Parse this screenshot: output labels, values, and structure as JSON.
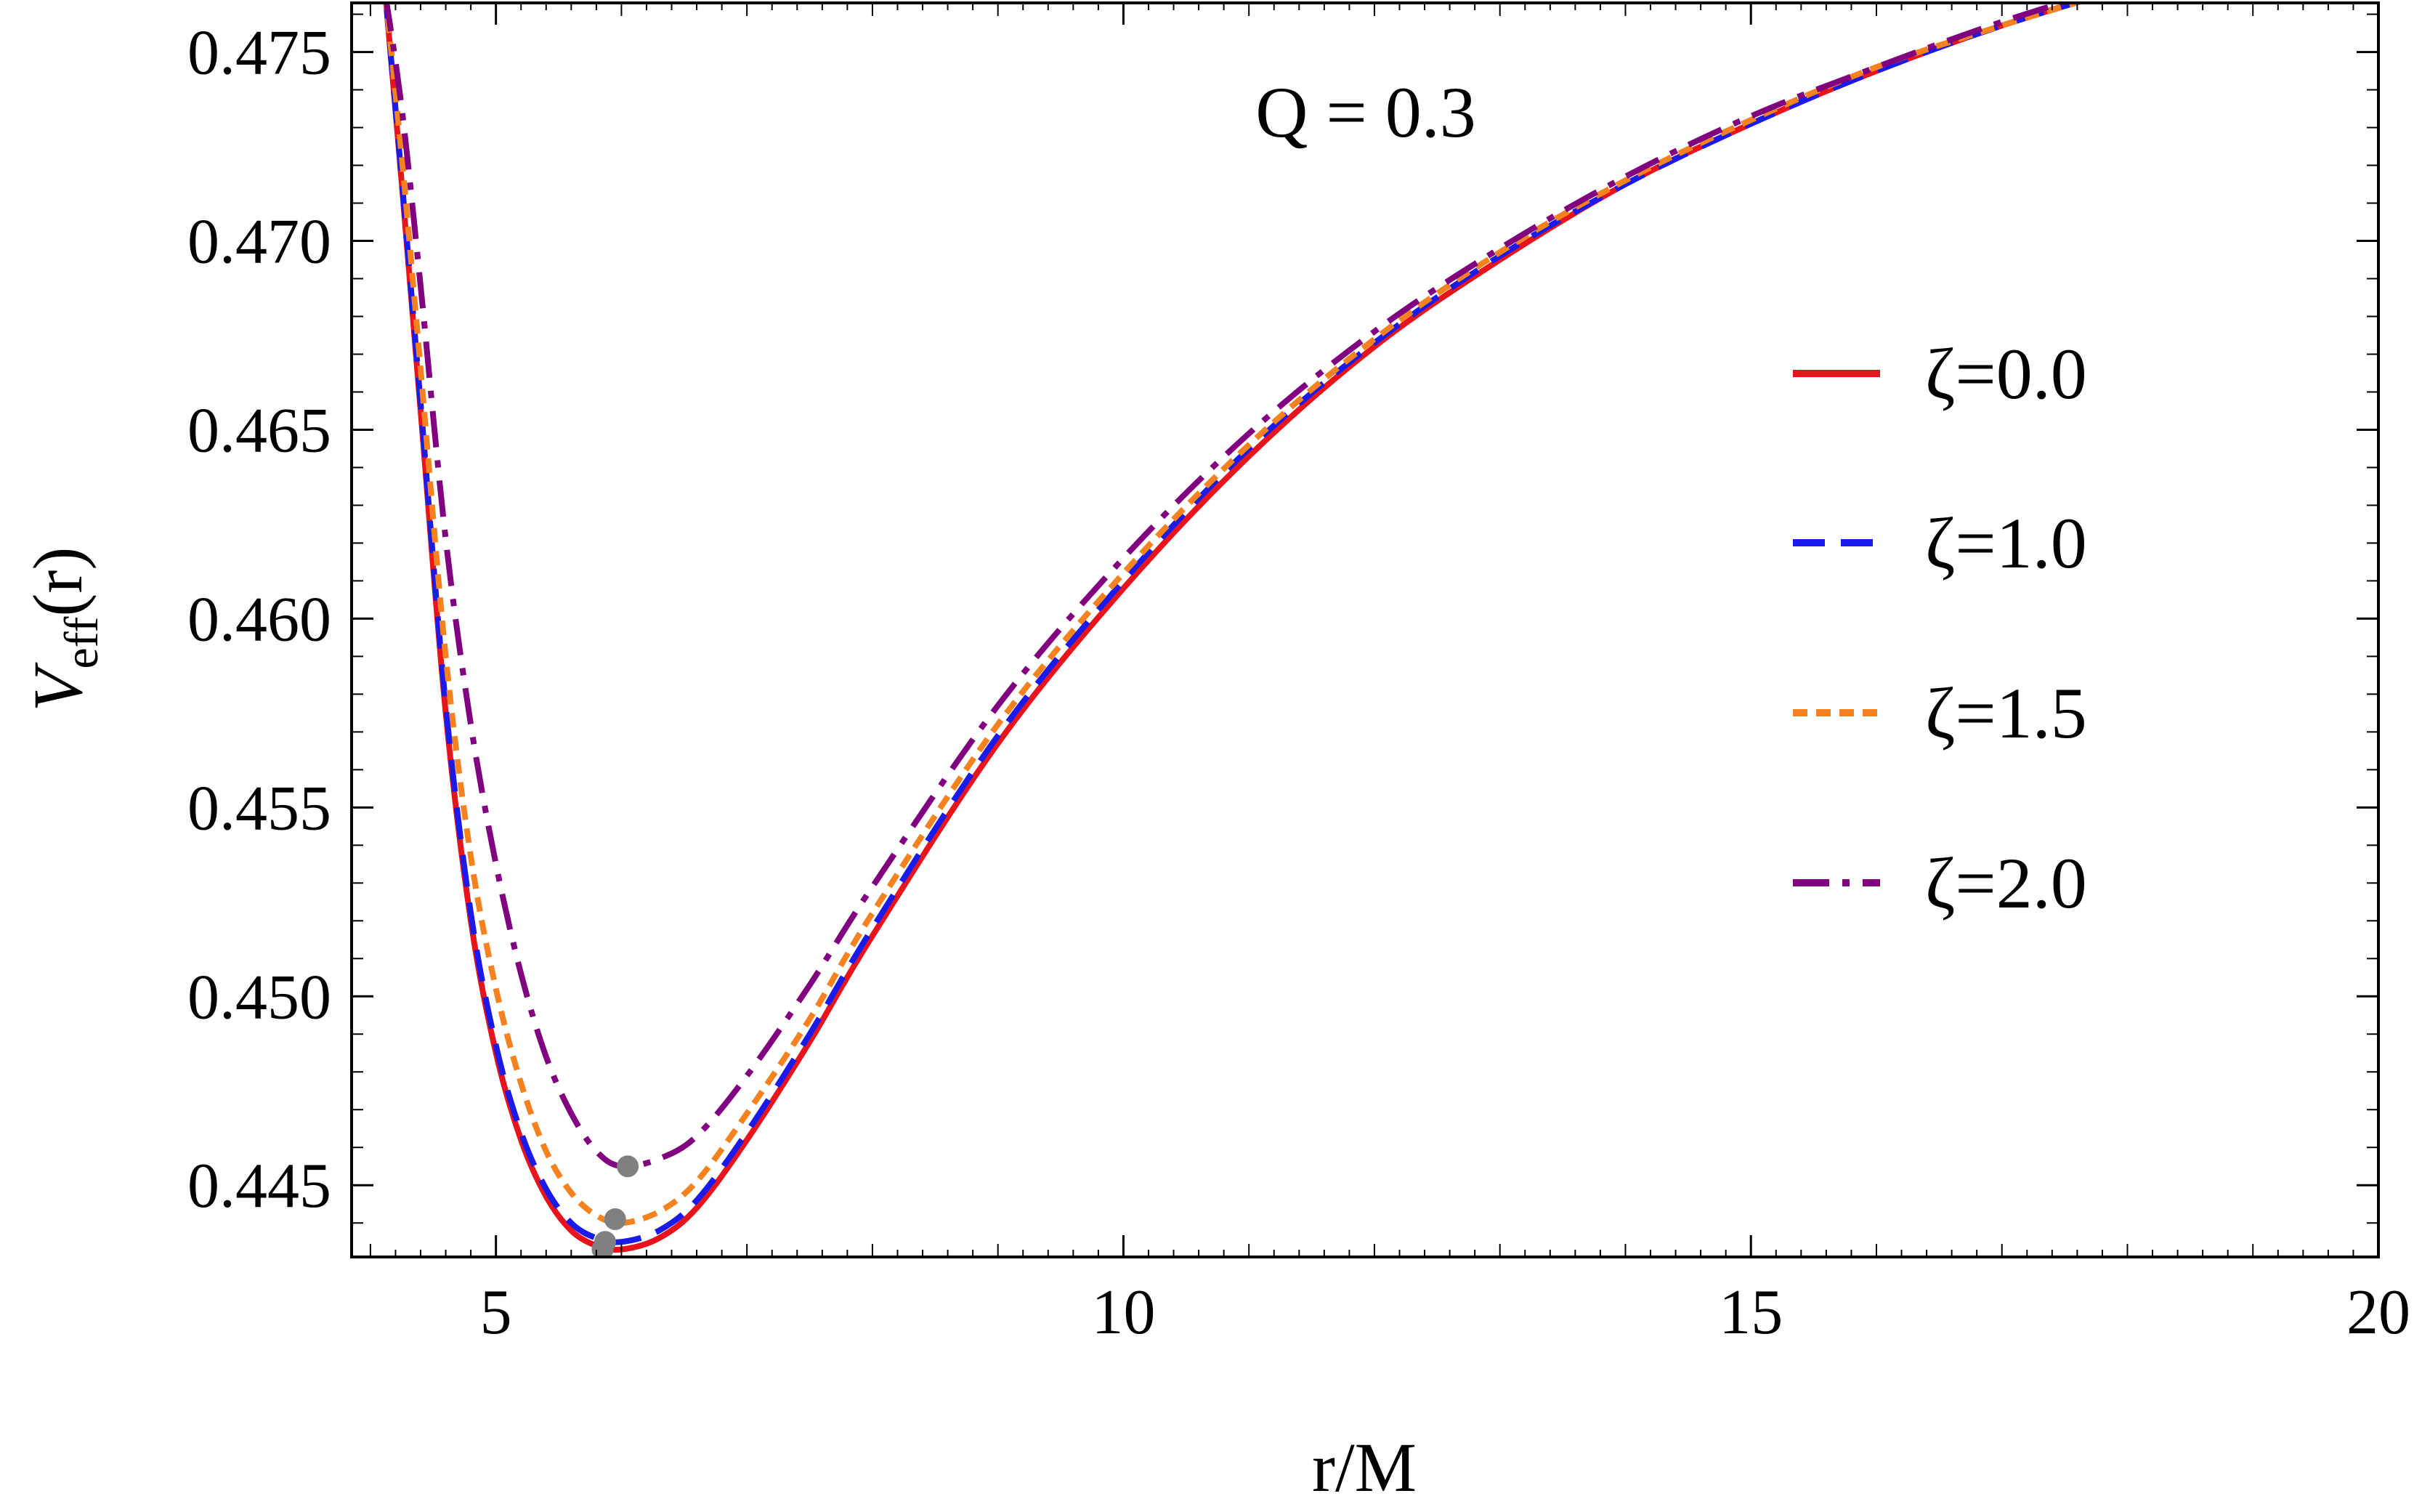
{
  "chart_data": {
    "type": "line",
    "annotation": "Q = 0.3",
    "xlabel": "r/M",
    "ylabel_main": "V",
    "ylabel_sub": "eff",
    "ylabel_tail": "(r)",
    "xlim": [
      3.85,
      20
    ],
    "ylim": [
      0.4431,
      0.4763
    ],
    "x_ticks": [
      5,
      10,
      15,
      20
    ],
    "x_tick_labels": [
      "5",
      "10",
      "15",
      "20"
    ],
    "y_ticks": [
      0.445,
      0.45,
      0.455,
      0.46,
      0.465,
      0.47,
      0.475
    ],
    "y_tick_labels": [
      "0.445",
      "0.450",
      "0.455",
      "0.460",
      "0.465",
      "0.470",
      "0.475"
    ],
    "grid": false,
    "legend_position": "right",
    "series": [
      {
        "name": "ζ=0.0",
        "color": "#e8141c",
        "dash": "solid",
        "x": [
          4.12,
          4.25,
          4.4,
          4.6,
          4.8,
          5.0,
          5.2,
          5.4,
          5.6,
          5.8,
          6.0,
          6.3,
          6.6,
          7.0,
          7.5,
          8.0,
          9.0,
          10.0,
          11.0,
          12.0,
          13.0,
          14.0,
          15.0,
          16.0,
          17.0,
          18.0,
          19.0,
          20.0
        ],
        "y": [
          0.4765,
          0.4715,
          0.4655,
          0.4575,
          0.452,
          0.4485,
          0.4462,
          0.4447,
          0.4438,
          0.4434,
          0.4433,
          0.4436,
          0.4444,
          0.4462,
          0.4488,
          0.4516,
          0.4567,
          0.4608,
          0.4643,
          0.4672,
          0.4695,
          0.4715,
          0.4731,
          0.4745,
          0.4757,
          0.4767,
          0.4776,
          0.4784
        ],
        "minimum": {
          "x": 5.85,
          "y": 0.4433
        }
      },
      {
        "name": "ζ=1.0",
        "color": "#1a1aeb",
        "dash": "dashed",
        "x": [
          4.12,
          4.25,
          4.4,
          4.6,
          4.8,
          5.0,
          5.2,
          5.4,
          5.6,
          5.8,
          6.0,
          6.3,
          6.6,
          7.0,
          7.5,
          8.0,
          9.0,
          10.0,
          11.0,
          12.0,
          13.0,
          14.0,
          15.0,
          16.0,
          17.0,
          18.0,
          19.0,
          20.0
        ],
        "y": [
          0.4765,
          0.4716,
          0.4657,
          0.4577,
          0.4522,
          0.4487,
          0.4464,
          0.4449,
          0.444,
          0.4436,
          0.4435,
          0.4438,
          0.4446,
          0.4464,
          0.449,
          0.4518,
          0.4569,
          0.461,
          0.4645,
          0.4673,
          0.4696,
          0.4715,
          0.4731,
          0.4745,
          0.4757,
          0.4767,
          0.4776,
          0.4784
        ],
        "minimum": {
          "x": 5.87,
          "y": 0.4435
        }
      },
      {
        "name": "ζ=1.5",
        "color": "#f5821f",
        "dash": "dotted",
        "x": [
          4.12,
          4.25,
          4.4,
          4.6,
          4.8,
          5.0,
          5.2,
          5.4,
          5.6,
          5.8,
          6.0,
          6.3,
          6.6,
          7.0,
          7.5,
          8.0,
          9.0,
          10.0,
          11.0,
          12.0,
          13.0,
          14.0,
          15.0,
          16.0,
          17.0,
          18.0,
          19.0,
          20.0
        ],
        "y": [
          0.4765,
          0.4722,
          0.4666,
          0.459,
          0.4537,
          0.4502,
          0.4477,
          0.4459,
          0.4448,
          0.4442,
          0.444,
          0.4443,
          0.4451,
          0.4469,
          0.4494,
          0.4522,
          0.4572,
          0.4612,
          0.4646,
          0.4674,
          0.4697,
          0.4716,
          0.4732,
          0.4746,
          0.4757,
          0.4767,
          0.4776,
          0.4784
        ],
        "minimum": {
          "x": 5.95,
          "y": 0.4441
        }
      },
      {
        "name": "ζ=2.0",
        "color": "#800080",
        "dash": "dashdot",
        "x": [
          4.12,
          4.25,
          4.4,
          4.6,
          4.8,
          5.0,
          5.2,
          5.4,
          5.6,
          5.8,
          6.0,
          6.3,
          6.6,
          7.0,
          7.5,
          8.0,
          9.0,
          10.0,
          11.0,
          12.0,
          13.0,
          14.0,
          15.0,
          16.0,
          17.0,
          18.0,
          19.0,
          20.0
        ],
        "y": [
          0.4765,
          0.4735,
          0.4688,
          0.4621,
          0.4572,
          0.4535,
          0.4506,
          0.4484,
          0.4469,
          0.4459,
          0.4455,
          0.4457,
          0.4463,
          0.4479,
          0.4503,
          0.4529,
          0.4577,
          0.4616,
          0.4649,
          0.4676,
          0.4698,
          0.4717,
          0.4733,
          0.4746,
          0.4758,
          0.4768,
          0.4776,
          0.4784
        ],
        "minimum": {
          "x": 6.05,
          "y": 0.4455
        }
      }
    ]
  }
}
